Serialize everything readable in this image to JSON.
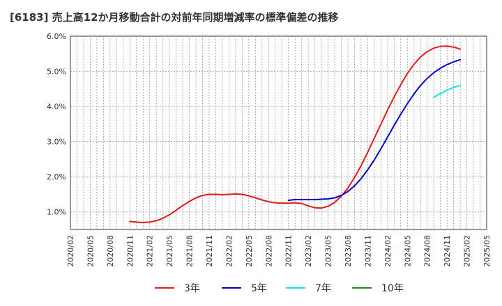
{
  "chart_data": {
    "type": "line",
    "title": "[6183]  売上高12か月移動合計の対前年同期増減率の標準偏差の推移",
    "xlabel": "",
    "ylabel": "",
    "x_tick_labels": [
      "2020/02",
      "2020/05",
      "2020/08",
      "2020/11",
      "2021/02",
      "2021/05",
      "2021/08",
      "2021/11",
      "2022/02",
      "2022/05",
      "2022/08",
      "2022/11",
      "2023/02",
      "2023/05",
      "2023/08",
      "2023/11",
      "2024/02",
      "2024/05",
      "2024/08",
      "2024/11",
      "2025/02",
      "2025/05"
    ],
    "y_tick_labels": [
      "1.0%",
      "2.0%",
      "3.0%",
      "4.0%",
      "5.0%",
      "6.0%"
    ],
    "y_ticks": [
      1.0,
      2.0,
      3.0,
      4.0,
      5.0,
      6.0
    ],
    "ylim": [
      0.5,
      6.0
    ],
    "xlim": [
      "2020/02",
      "2025/05"
    ],
    "grid": true,
    "legend_position": "bottom",
    "series": [
      {
        "name": "3年",
        "color": "#e31a1c",
        "points": [
          [
            "2020/11",
            0.73
          ],
          [
            "2020/12",
            0.71
          ],
          [
            "2021/01",
            0.7
          ],
          [
            "2021/02",
            0.71
          ],
          [
            "2021/03",
            0.75
          ],
          [
            "2021/04",
            0.82
          ],
          [
            "2021/05",
            0.92
          ],
          [
            "2021/06",
            1.05
          ],
          [
            "2021/07",
            1.18
          ],
          [
            "2021/08",
            1.3
          ],
          [
            "2021/09",
            1.4
          ],
          [
            "2021/10",
            1.47
          ],
          [
            "2021/11",
            1.5
          ],
          [
            "2021/12",
            1.5
          ],
          [
            "2022/01",
            1.49
          ],
          [
            "2022/02",
            1.5
          ],
          [
            "2022/03",
            1.51
          ],
          [
            "2022/04",
            1.5
          ],
          [
            "2022/05",
            1.46
          ],
          [
            "2022/06",
            1.4
          ],
          [
            "2022/07",
            1.34
          ],
          [
            "2022/08",
            1.29
          ],
          [
            "2022/09",
            1.26
          ],
          [
            "2022/10",
            1.25
          ],
          [
            "2022/11",
            1.25
          ],
          [
            "2022/12",
            1.26
          ],
          [
            "2023/01",
            1.24
          ],
          [
            "2023/02",
            1.17
          ],
          [
            "2023/03",
            1.12
          ],
          [
            "2023/04",
            1.11
          ],
          [
            "2023/05",
            1.16
          ],
          [
            "2023/06",
            1.27
          ],
          [
            "2023/07",
            1.45
          ],
          [
            "2023/08",
            1.68
          ],
          [
            "2023/09",
            1.98
          ],
          [
            "2023/10",
            2.32
          ],
          [
            "2023/11",
            2.7
          ],
          [
            "2023/12",
            3.1
          ],
          [
            "2024/01",
            3.5
          ],
          [
            "2024/02",
            3.9
          ],
          [
            "2024/03",
            4.27
          ],
          [
            "2024/04",
            4.62
          ],
          [
            "2024/05",
            4.94
          ],
          [
            "2024/06",
            5.2
          ],
          [
            "2024/07",
            5.41
          ],
          [
            "2024/08",
            5.56
          ],
          [
            "2024/09",
            5.66
          ],
          [
            "2024/10",
            5.71
          ],
          [
            "2024/11",
            5.72
          ],
          [
            "2024/12",
            5.69
          ],
          [
            "2025/01",
            5.63
          ]
        ]
      },
      {
        "name": "5年",
        "color": "#0000cc",
        "points": [
          [
            "2022/11",
            1.33
          ],
          [
            "2022/12",
            1.35
          ],
          [
            "2023/01",
            1.35
          ],
          [
            "2023/02",
            1.35
          ],
          [
            "2023/03",
            1.35
          ],
          [
            "2023/04",
            1.36
          ],
          [
            "2023/05",
            1.37
          ],
          [
            "2023/06",
            1.4
          ],
          [
            "2023/07",
            1.47
          ],
          [
            "2023/08",
            1.58
          ],
          [
            "2023/09",
            1.74
          ],
          [
            "2023/10",
            1.95
          ],
          [
            "2023/11",
            2.2
          ],
          [
            "2023/12",
            2.48
          ],
          [
            "2024/01",
            2.8
          ],
          [
            "2024/02",
            3.13
          ],
          [
            "2024/03",
            3.46
          ],
          [
            "2024/04",
            3.78
          ],
          [
            "2024/05",
            4.08
          ],
          [
            "2024/06",
            4.36
          ],
          [
            "2024/07",
            4.6
          ],
          [
            "2024/08",
            4.8
          ],
          [
            "2024/09",
            4.96
          ],
          [
            "2024/10",
            5.09
          ],
          [
            "2024/11",
            5.19
          ],
          [
            "2024/12",
            5.27
          ],
          [
            "2025/01",
            5.33
          ]
        ]
      },
      {
        "name": "7年",
        "color": "#00e5ee",
        "points": [
          [
            "2024/09",
            4.26
          ],
          [
            "2024/10",
            4.37
          ],
          [
            "2024/11",
            4.46
          ],
          [
            "2024/12",
            4.54
          ],
          [
            "2025/01",
            4.6
          ]
        ]
      },
      {
        "name": "10年",
        "color": "#228b22",
        "points": []
      }
    ]
  },
  "colors": {
    "plot_background": "#ffffff",
    "grid": "#999999",
    "axis": "#333333"
  }
}
